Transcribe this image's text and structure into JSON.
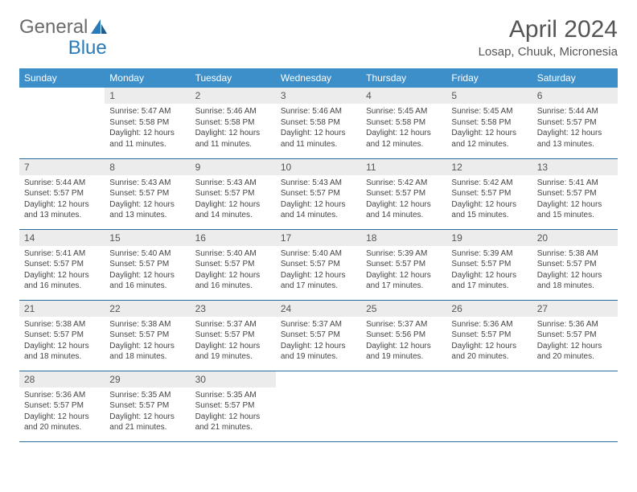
{
  "logo": {
    "part1": "General",
    "part2": "Blue"
  },
  "title": "April 2024",
  "location": "Losap, Chuuk, Micronesia",
  "colors": {
    "header_bg": "#3d8fc9",
    "header_text": "#ffffff",
    "daynum_bg": "#ececec",
    "row_border": "#2a6a9e",
    "logo_gray": "#6b6b6b",
    "logo_blue": "#2a7ab8"
  },
  "day_headers": [
    "Sunday",
    "Monday",
    "Tuesday",
    "Wednesday",
    "Thursday",
    "Friday",
    "Saturday"
  ],
  "first_day_offset": 1,
  "days": [
    {
      "n": "1",
      "sunrise": "5:47 AM",
      "sunset": "5:58 PM",
      "daylight": "12 hours and 11 minutes."
    },
    {
      "n": "2",
      "sunrise": "5:46 AM",
      "sunset": "5:58 PM",
      "daylight": "12 hours and 11 minutes."
    },
    {
      "n": "3",
      "sunrise": "5:46 AM",
      "sunset": "5:58 PM",
      "daylight": "12 hours and 11 minutes."
    },
    {
      "n": "4",
      "sunrise": "5:45 AM",
      "sunset": "5:58 PM",
      "daylight": "12 hours and 12 minutes."
    },
    {
      "n": "5",
      "sunrise": "5:45 AM",
      "sunset": "5:58 PM",
      "daylight": "12 hours and 12 minutes."
    },
    {
      "n": "6",
      "sunrise": "5:44 AM",
      "sunset": "5:57 PM",
      "daylight": "12 hours and 13 minutes."
    },
    {
      "n": "7",
      "sunrise": "5:44 AM",
      "sunset": "5:57 PM",
      "daylight": "12 hours and 13 minutes."
    },
    {
      "n": "8",
      "sunrise": "5:43 AM",
      "sunset": "5:57 PM",
      "daylight": "12 hours and 13 minutes."
    },
    {
      "n": "9",
      "sunrise": "5:43 AM",
      "sunset": "5:57 PM",
      "daylight": "12 hours and 14 minutes."
    },
    {
      "n": "10",
      "sunrise": "5:43 AM",
      "sunset": "5:57 PM",
      "daylight": "12 hours and 14 minutes."
    },
    {
      "n": "11",
      "sunrise": "5:42 AM",
      "sunset": "5:57 PM",
      "daylight": "12 hours and 14 minutes."
    },
    {
      "n": "12",
      "sunrise": "5:42 AM",
      "sunset": "5:57 PM",
      "daylight": "12 hours and 15 minutes."
    },
    {
      "n": "13",
      "sunrise": "5:41 AM",
      "sunset": "5:57 PM",
      "daylight": "12 hours and 15 minutes."
    },
    {
      "n": "14",
      "sunrise": "5:41 AM",
      "sunset": "5:57 PM",
      "daylight": "12 hours and 16 minutes."
    },
    {
      "n": "15",
      "sunrise": "5:40 AM",
      "sunset": "5:57 PM",
      "daylight": "12 hours and 16 minutes."
    },
    {
      "n": "16",
      "sunrise": "5:40 AM",
      "sunset": "5:57 PM",
      "daylight": "12 hours and 16 minutes."
    },
    {
      "n": "17",
      "sunrise": "5:40 AM",
      "sunset": "5:57 PM",
      "daylight": "12 hours and 17 minutes."
    },
    {
      "n": "18",
      "sunrise": "5:39 AM",
      "sunset": "5:57 PM",
      "daylight": "12 hours and 17 minutes."
    },
    {
      "n": "19",
      "sunrise": "5:39 AM",
      "sunset": "5:57 PM",
      "daylight": "12 hours and 17 minutes."
    },
    {
      "n": "20",
      "sunrise": "5:38 AM",
      "sunset": "5:57 PM",
      "daylight": "12 hours and 18 minutes."
    },
    {
      "n": "21",
      "sunrise": "5:38 AM",
      "sunset": "5:57 PM",
      "daylight": "12 hours and 18 minutes."
    },
    {
      "n": "22",
      "sunrise": "5:38 AM",
      "sunset": "5:57 PM",
      "daylight": "12 hours and 18 minutes."
    },
    {
      "n": "23",
      "sunrise": "5:37 AM",
      "sunset": "5:57 PM",
      "daylight": "12 hours and 19 minutes."
    },
    {
      "n": "24",
      "sunrise": "5:37 AM",
      "sunset": "5:57 PM",
      "daylight": "12 hours and 19 minutes."
    },
    {
      "n": "25",
      "sunrise": "5:37 AM",
      "sunset": "5:56 PM",
      "daylight": "12 hours and 19 minutes."
    },
    {
      "n": "26",
      "sunrise": "5:36 AM",
      "sunset": "5:57 PM",
      "daylight": "12 hours and 20 minutes."
    },
    {
      "n": "27",
      "sunrise": "5:36 AM",
      "sunset": "5:57 PM",
      "daylight": "12 hours and 20 minutes."
    },
    {
      "n": "28",
      "sunrise": "5:36 AM",
      "sunset": "5:57 PM",
      "daylight": "12 hours and 20 minutes."
    },
    {
      "n": "29",
      "sunrise": "5:35 AM",
      "sunset": "5:57 PM",
      "daylight": "12 hours and 21 minutes."
    },
    {
      "n": "30",
      "sunrise": "5:35 AM",
      "sunset": "5:57 PM",
      "daylight": "12 hours and 21 minutes."
    }
  ],
  "labels": {
    "sunrise": "Sunrise:",
    "sunset": "Sunset:",
    "daylight": "Daylight:"
  }
}
